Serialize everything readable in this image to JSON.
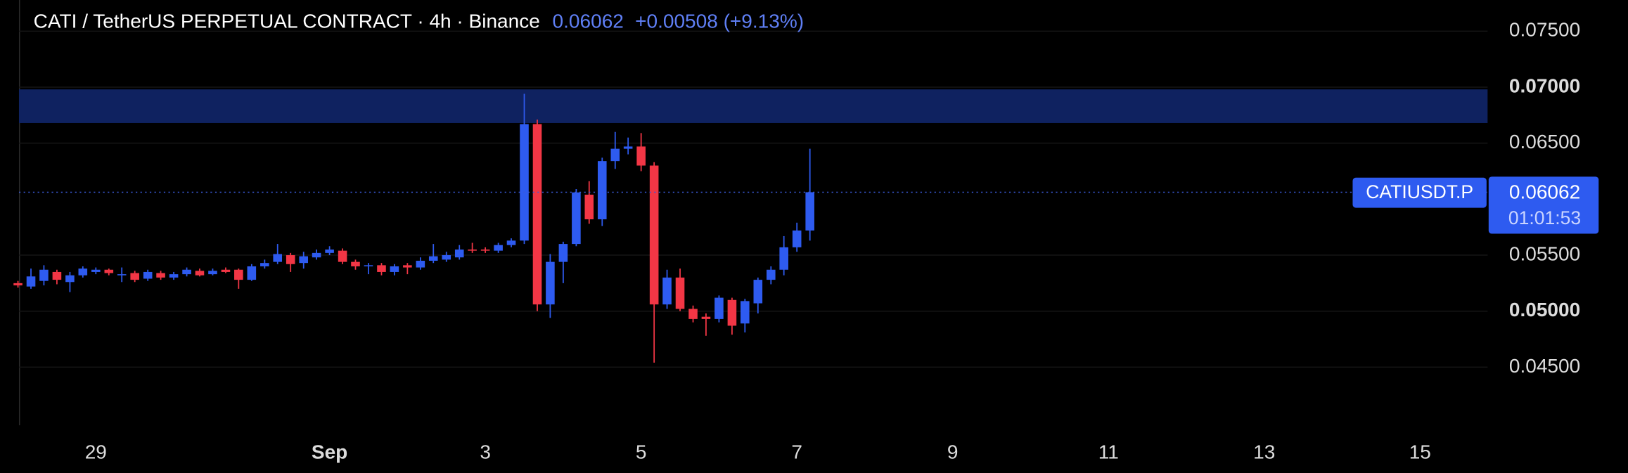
{
  "chart_data": {
    "type": "candlestick",
    "title": "CATI / TetherUS PERPETUAL CONTRACT · 4h · Binance",
    "last_price": 0.06062,
    "change": "+0.00508 (+9.13%)",
    "symbol": "CATIUSDT.P",
    "countdown": "01:01:53",
    "up_color": "#2e5bf0",
    "down_color": "#f23645",
    "zone": [
      0.0668,
      0.0698
    ],
    "zone_color": "#0f2260",
    "xlim": [
      28.013,
      46.867
    ],
    "xticks": [
      {
        "value": 29,
        "label": "29"
      },
      {
        "value": 32,
        "label": "Sep"
      },
      {
        "value": 34,
        "label": "3"
      },
      {
        "value": 36,
        "label": "5"
      },
      {
        "value": 38,
        "label": "7"
      },
      {
        "value": 40,
        "label": "9"
      },
      {
        "value": 42,
        "label": "11"
      },
      {
        "value": 44,
        "label": "13"
      },
      {
        "value": 46,
        "label": "15"
      }
    ],
    "ylim": [
      0.03981,
      0.07778
    ],
    "yticks": [
      {
        "value": 0.045,
        "label": "0.04500"
      },
      {
        "value": 0.05,
        "label": "0.05000"
      },
      {
        "value": 0.055,
        "label": "0.05500"
      },
      {
        "value": 0.065,
        "label": "0.06500"
      },
      {
        "value": 0.07,
        "label": "0.07000"
      },
      {
        "value": 0.075,
        "label": "0.07500"
      }
    ],
    "grid": true,
    "x": [
      28,
      28.167,
      28.333,
      28.5,
      28.667,
      28.833,
      29,
      29.167,
      29.333,
      29.5,
      29.667,
      29.833,
      30,
      30.167,
      30.333,
      30.5,
      30.667,
      30.833,
      31,
      31.167,
      31.333,
      31.5,
      31.667,
      31.833,
      32,
      32.167,
      32.333,
      32.5,
      32.667,
      32.833,
      33,
      33.167,
      33.333,
      33.5,
      33.667,
      33.833,
      34,
      34.167,
      34.333,
      34.5,
      34.667,
      34.833,
      35,
      35.167,
      35.333,
      35.5,
      35.667,
      35.833,
      36,
      36.167,
      36.333,
      36.5,
      36.667,
      36.833,
      37,
      37.167,
      37.333,
      37.5,
      37.667,
      37.833,
      38,
      38.167
    ],
    "open": [
      0.0525,
      0.0522,
      0.0527,
      0.0535,
      0.0526,
      0.0532,
      0.0535,
      0.0537,
      0.0532,
      0.0534,
      0.0529,
      0.0534,
      0.053,
      0.0533,
      0.0536,
      0.0533,
      0.0537,
      0.0537,
      0.0528,
      0.054,
      0.0544,
      0.055,
      0.0543,
      0.0548,
      0.0552,
      0.0554,
      0.0544,
      0.054,
      0.0541,
      0.0535,
      0.0541,
      0.0539,
      0.0545,
      0.0546,
      0.0548,
      0.0555,
      0.0555,
      0.0554,
      0.0559,
      0.0563,
      0.0667,
      0.0506,
      0.0544,
      0.056,
      0.0604,
      0.0582,
      0.0634,
      0.0645,
      0.0647,
      0.063,
      0.0506,
      0.053,
      0.0502,
      0.0495,
      0.0493,
      0.051,
      0.0489,
      0.0507,
      0.0528,
      0.0537,
      0.0557,
      0.0572
    ],
    "high": [
      0.0527,
      0.0538,
      0.0541,
      0.0537,
      0.0535,
      0.054,
      0.0539,
      0.0538,
      0.0539,
      0.0536,
      0.0537,
      0.0536,
      0.0535,
      0.0539,
      0.0538,
      0.0538,
      0.0539,
      0.0538,
      0.0542,
      0.0546,
      0.056,
      0.0552,
      0.0553,
      0.0555,
      0.0558,
      0.0556,
      0.0546,
      0.0543,
      0.0543,
      0.0542,
      0.0543,
      0.0548,
      0.056,
      0.0553,
      0.0559,
      0.0561,
      0.0557,
      0.0561,
      0.0565,
      0.0694,
      0.0671,
      0.0551,
      0.0562,
      0.0609,
      0.0616,
      0.0637,
      0.066,
      0.0655,
      0.0659,
      0.0633,
      0.0537,
      0.0538,
      0.0505,
      0.0498,
      0.0514,
      0.0512,
      0.0511,
      0.053,
      0.054,
      0.0567,
      0.0579,
      0.0645
    ],
    "low": [
      0.0521,
      0.052,
      0.0523,
      0.0524,
      0.0517,
      0.053,
      0.0533,
      0.0532,
      0.0526,
      0.0526,
      0.0527,
      0.0528,
      0.0528,
      0.0531,
      0.0531,
      0.0532,
      0.0534,
      0.052,
      0.0527,
      0.0538,
      0.0542,
      0.0535,
      0.0538,
      0.0546,
      0.055,
      0.0542,
      0.0537,
      0.0533,
      0.0532,
      0.0532,
      0.0533,
      0.0537,
      0.0543,
      0.0544,
      0.0546,
      0.0552,
      0.0552,
      0.0552,
      0.0557,
      0.056,
      0.05,
      0.0494,
      0.0525,
      0.0558,
      0.0578,
      0.0576,
      0.0627,
      0.064,
      0.0625,
      0.0454,
      0.0502,
      0.05,
      0.049,
      0.0478,
      0.049,
      0.0479,
      0.0481,
      0.0498,
      0.0524,
      0.0532,
      0.0553,
      0.0563
    ],
    "close": [
      0.0523,
      0.0531,
      0.0537,
      0.0528,
      0.0532,
      0.0538,
      0.0537,
      0.0534,
      0.0533,
      0.0528,
      0.0535,
      0.053,
      0.0533,
      0.0537,
      0.0532,
      0.0536,
      0.0535,
      0.0528,
      0.054,
      0.0543,
      0.0551,
      0.0542,
      0.0549,
      0.0552,
      0.0555,
      0.0544,
      0.054,
      0.0541,
      0.0535,
      0.054,
      0.0539,
      0.0545,
      0.0549,
      0.055,
      0.0555,
      0.0554,
      0.0554,
      0.0559,
      0.0563,
      0.0667,
      0.0506,
      0.0544,
      0.056,
      0.0606,
      0.0582,
      0.0634,
      0.0645,
      0.0647,
      0.063,
      0.0506,
      0.053,
      0.0502,
      0.0493,
      0.0493,
      0.0512,
      0.0487,
      0.0509,
      0.0528,
      0.0537,
      0.0557,
      0.0572,
      0.06062
    ]
  }
}
